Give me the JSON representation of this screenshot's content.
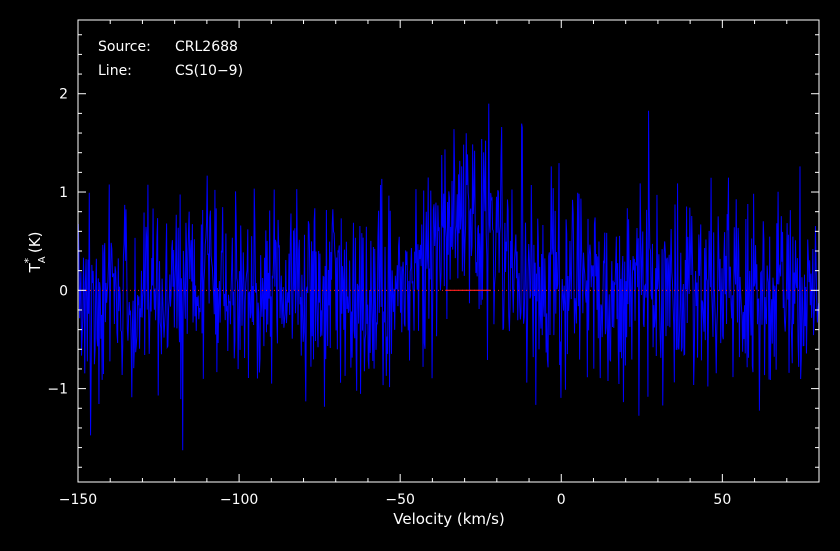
{
  "chart_data": {
    "type": "line",
    "xlabel": "Velocity (km/s)",
    "ylabel_main": "T",
    "ylabel_sub": "A",
    "ylabel_sup": "*",
    "ylabel_unit": " (K)",
    "xlim": [
      -150,
      80
    ],
    "ylim": [
      -1.95,
      2.75
    ],
    "x_ticks": [
      -150,
      -100,
      -50,
      0,
      50
    ],
    "x_tick_labels": [
      "−150",
      "−100",
      "−50",
      "0",
      "50"
    ],
    "y_ticks": [
      -1,
      0,
      1,
      2
    ],
    "y_tick_labels": [
      "−1",
      "0",
      "1",
      "2"
    ],
    "x_minor_step": 10,
    "y_minor_step": 0.2,
    "grid": false,
    "annotations": {
      "source_label": "Source:",
      "source_value": "CRL2688",
      "line_label": "Line:",
      "line_value": "CS(10−9)"
    },
    "series": [
      {
        "color": "#0000ff",
        "x_start": -150,
        "x_end": 80,
        "n_channels": 1150,
        "noise_rms": 0.5,
        "seed": 2688,
        "signal": {
          "center": -30,
          "fwhm": 22,
          "peak": 0.75
        }
      }
    ],
    "baseline": {
      "color": "#ff2020",
      "y": 0,
      "x_range": [
        -150,
        80
      ]
    },
    "fit_segment": {
      "color": "#ff2020",
      "y": 0,
      "x_range": [
        -36,
        -22
      ]
    },
    "colors": {
      "background": "#000000",
      "axes": "#ffffff",
      "spectrum": "#0000ff",
      "baseline": "#ff2020"
    }
  }
}
